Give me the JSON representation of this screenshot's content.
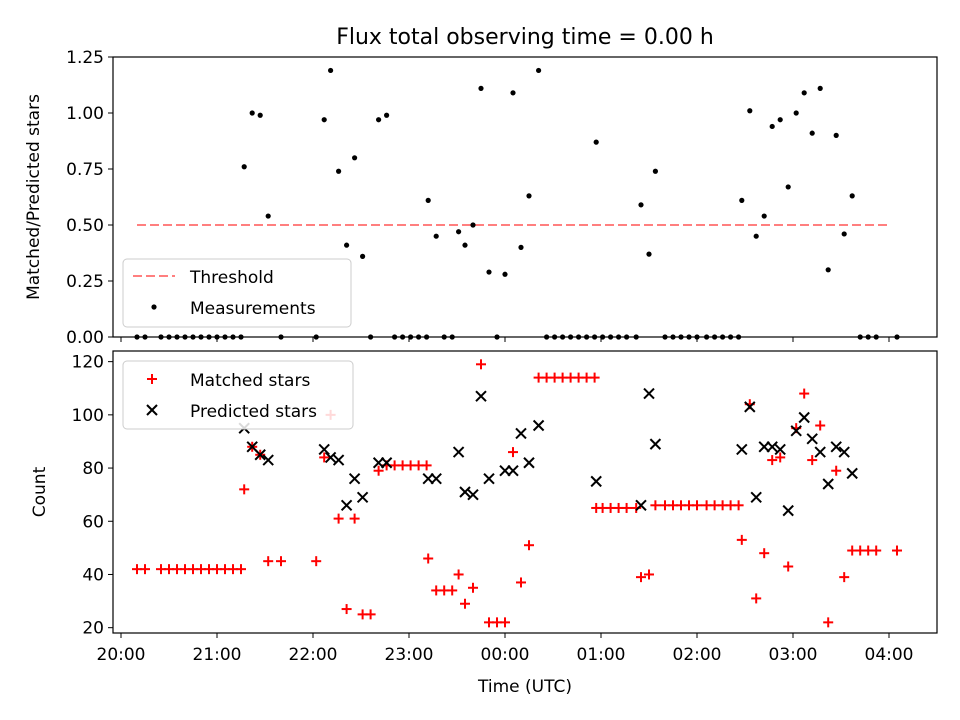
{
  "chart_data": [
    {
      "type": "scatter",
      "title": "Flux total observing time = 0.00 h",
      "ylabel": "Matched/Predicted stars",
      "xlabel": "",
      "ylim": [
        0,
        1.25
      ],
      "yticks": [
        "0.00",
        "0.25",
        "0.50",
        "0.75",
        "1.00",
        "1.25"
      ],
      "threshold": {
        "name": "Threshold",
        "value": 0.5,
        "color": "#ff7f7f",
        "x_range": [
          "20:10",
          "04:00"
        ]
      },
      "series": [
        {
          "name": "Measurements",
          "color": "#000000",
          "points": [
            [
              "20:10",
              0
            ],
            [
              "20:15",
              0
            ],
            [
              "20:25",
              0
            ],
            [
              "20:30",
              0
            ],
            [
              "20:35",
              0
            ],
            [
              "20:40",
              0
            ],
            [
              "20:45",
              0
            ],
            [
              "20:50",
              0
            ],
            [
              "20:55",
              0
            ],
            [
              "21:00",
              0
            ],
            [
              "21:05",
              0
            ],
            [
              "21:10",
              0
            ],
            [
              "21:15",
              0
            ],
            [
              "21:17",
              0.76
            ],
            [
              "21:22",
              1.0
            ],
            [
              "21:27",
              0.99
            ],
            [
              "21:32",
              0.54
            ],
            [
              "21:40",
              0
            ],
            [
              "22:02",
              0
            ],
            [
              "22:07",
              0.97
            ],
            [
              "22:11",
              1.19
            ],
            [
              "22:16",
              0.74
            ],
            [
              "22:21",
              0.41
            ],
            [
              "22:26",
              0.8
            ],
            [
              "22:31",
              0.36
            ],
            [
              "22:36",
              0
            ],
            [
              "22:41",
              0.97
            ],
            [
              "22:46",
              0.99
            ],
            [
              "22:51",
              0
            ],
            [
              "22:56",
              0
            ],
            [
              "23:01",
              0
            ],
            [
              "23:06",
              0
            ],
            [
              "23:11",
              0
            ],
            [
              "23:12",
              0.61
            ],
            [
              "23:17",
              0.45
            ],
            [
              "23:22",
              0
            ],
            [
              "23:27",
              0
            ],
            [
              "23:31",
              0.47
            ],
            [
              "23:35",
              0.41
            ],
            [
              "23:40",
              0.5
            ],
            [
              "23:45",
              1.11
            ],
            [
              "23:50",
              0.29
            ],
            [
              "23:55",
              0
            ],
            [
              "24:00",
              0.28
            ],
            [
              "24:05",
              1.09
            ],
            [
              "24:10",
              0.4
            ],
            [
              "24:15",
              0.63
            ],
            [
              "24:21",
              1.19
            ],
            [
              "24:26",
              0
            ],
            [
              "24:31",
              0
            ],
            [
              "24:36",
              0
            ],
            [
              "24:41",
              0
            ],
            [
              "24:46",
              0
            ],
            [
              "24:51",
              0
            ],
            [
              "24:56",
              0
            ],
            [
              "25:01",
              0
            ],
            [
              "24:57",
              0.87
            ],
            [
              "25:06",
              0
            ],
            [
              "25:11",
              0
            ],
            [
              "25:16",
              0
            ],
            [
              "25:22",
              0
            ],
            [
              "25:25",
              0.59
            ],
            [
              "25:30",
              0.37
            ],
            [
              "25:34",
              0.74
            ],
            [
              "25:40",
              0
            ],
            [
              "25:45",
              0
            ],
            [
              "25:50",
              0
            ],
            [
              "25:55",
              0
            ],
            [
              "26:00",
              0
            ],
            [
              "26:06",
              0
            ],
            [
              "26:11",
              0
            ],
            [
              "26:16",
              0
            ],
            [
              "26:21",
              0
            ],
            [
              "26:26",
              0
            ],
            [
              "26:28",
              0.61
            ],
            [
              "26:33",
              1.01
            ],
            [
              "26:37",
              0.45
            ],
            [
              "26:42",
              0.54
            ],
            [
              "26:47",
              0.94
            ],
            [
              "26:52",
              0.97
            ],
            [
              "26:57",
              0.67
            ],
            [
              "27:02",
              1.0
            ],
            [
              "27:07",
              1.09
            ],
            [
              "27:12",
              0.91
            ],
            [
              "27:17",
              1.11
            ],
            [
              "27:22",
              0.3
            ],
            [
              "27:27",
              0.9
            ],
            [
              "27:32",
              0.46
            ],
            [
              "27:37",
              0.63
            ],
            [
              "27:42",
              0
            ],
            [
              "27:47",
              0
            ],
            [
              "27:52",
              0
            ],
            [
              "28:05",
              0
            ]
          ]
        }
      ],
      "legend": "lower-left"
    },
    {
      "type": "scatter",
      "title": "",
      "ylabel": "Count",
      "xlabel": "Time (UTC)",
      "ylim": [
        18,
        124
      ],
      "yticks": [
        "20",
        "40",
        "60",
        "80",
        "100",
        "120"
      ],
      "xticks": [
        "20:00",
        "21:00",
        "22:00",
        "23:00",
        "00:00",
        "01:00",
        "02:00",
        "03:00",
        "04:00"
      ],
      "xlim": [
        "19:55",
        "04:30"
      ],
      "series": [
        {
          "name": "Matched stars",
          "color": "#ff0000",
          "marker": "plus",
          "points": [
            [
              "20:10",
              42
            ],
            [
              "20:15",
              42
            ],
            [
              "20:25",
              42
            ],
            [
              "20:30",
              42
            ],
            [
              "20:35",
              42
            ],
            [
              "20:40",
              42
            ],
            [
              "20:45",
              42
            ],
            [
              "20:50",
              42
            ],
            [
              "20:55",
              42
            ],
            [
              "21:00",
              42
            ],
            [
              "21:05",
              42
            ],
            [
              "21:10",
              42
            ],
            [
              "21:15",
              42
            ],
            [
              "21:17",
              72
            ],
            [
              "21:22",
              88
            ],
            [
              "21:27",
              85
            ],
            [
              "21:32",
              45
            ],
            [
              "21:40",
              45
            ],
            [
              "22:02",
              45
            ],
            [
              "22:07",
              84
            ],
            [
              "22:11",
              100
            ],
            [
              "22:16",
              61
            ],
            [
              "22:21",
              27
            ],
            [
              "22:26",
              61
            ],
            [
              "22:31",
              25
            ],
            [
              "22:36",
              25
            ],
            [
              "22:41",
              79
            ],
            [
              "22:46",
              81
            ],
            [
              "22:51",
              81
            ],
            [
              "22:56",
              81
            ],
            [
              "23:01",
              81
            ],
            [
              "23:06",
              81
            ],
            [
              "23:11",
              81
            ],
            [
              "23:12",
              46
            ],
            [
              "23:17",
              34
            ],
            [
              "23:22",
              34
            ],
            [
              "23:27",
              34
            ],
            [
              "23:31",
              40
            ],
            [
              "23:35",
              29
            ],
            [
              "23:40",
              35
            ],
            [
              "23:45",
              119
            ],
            [
              "23:50",
              22
            ],
            [
              "23:55",
              22
            ],
            [
              "24:00",
              22
            ],
            [
              "24:05",
              86
            ],
            [
              "24:10",
              37
            ],
            [
              "24:15",
              51
            ],
            [
              "24:21",
              114
            ],
            [
              "24:26",
              114
            ],
            [
              "24:31",
              114
            ],
            [
              "24:36",
              114
            ],
            [
              "24:41",
              114
            ],
            [
              "24:46",
              114
            ],
            [
              "24:51",
              114
            ],
            [
              "24:56",
              114
            ],
            [
              "24:57",
              65
            ],
            [
              "25:01",
              65
            ],
            [
              "25:06",
              65
            ],
            [
              "25:11",
              65
            ],
            [
              "25:16",
              65
            ],
            [
              "25:22",
              65
            ],
            [
              "25:25",
              39
            ],
            [
              "25:30",
              40
            ],
            [
              "25:34",
              66
            ],
            [
              "25:40",
              66
            ],
            [
              "25:45",
              66
            ],
            [
              "25:50",
              66
            ],
            [
              "25:55",
              66
            ],
            [
              "26:00",
              66
            ],
            [
              "26:06",
              66
            ],
            [
              "26:11",
              66
            ],
            [
              "26:16",
              66
            ],
            [
              "26:21",
              66
            ],
            [
              "26:26",
              66
            ],
            [
              "26:28",
              53
            ],
            [
              "26:33",
              104
            ],
            [
              "26:37",
              31
            ],
            [
              "26:42",
              48
            ],
            [
              "26:47",
              83
            ],
            [
              "26:52",
              84
            ],
            [
              "26:57",
              43
            ],
            [
              "27:02",
              95
            ],
            [
              "27:07",
              108
            ],
            [
              "27:12",
              83
            ],
            [
              "27:17",
              96
            ],
            [
              "27:22",
              22
            ],
            [
              "27:27",
              79
            ],
            [
              "27:32",
              39
            ],
            [
              "27:37",
              49
            ],
            [
              "27:42",
              49
            ],
            [
              "27:47",
              49
            ],
            [
              "27:52",
              49
            ],
            [
              "28:05",
              49
            ]
          ]
        },
        {
          "name": "Predicted stars",
          "color": "#000000",
          "marker": "x",
          "points": [
            [
              "21:17",
              95
            ],
            [
              "21:22",
              88
            ],
            [
              "21:27",
              85
            ],
            [
              "21:32",
              83
            ],
            [
              "22:07",
              87
            ],
            [
              "22:11",
              84
            ],
            [
              "22:16",
              83
            ],
            [
              "22:21",
              66
            ],
            [
              "22:26",
              76
            ],
            [
              "22:31",
              69
            ],
            [
              "22:41",
              82
            ],
            [
              "22:46",
              82
            ],
            [
              "23:12",
              76
            ],
            [
              "23:17",
              76
            ],
            [
              "23:31",
              86
            ],
            [
              "23:35",
              71
            ],
            [
              "23:40",
              70
            ],
            [
              "23:45",
              107
            ],
            [
              "23:50",
              76
            ],
            [
              "24:00",
              79
            ],
            [
              "24:05",
              79
            ],
            [
              "24:10",
              93
            ],
            [
              "24:15",
              82
            ],
            [
              "24:21",
              96
            ],
            [
              "24:57",
              75
            ],
            [
              "25:25",
              66
            ],
            [
              "25:30",
              108
            ],
            [
              "25:34",
              89
            ],
            [
              "26:28",
              87
            ],
            [
              "26:33",
              103
            ],
            [
              "26:37",
              69
            ],
            [
              "26:42",
              88
            ],
            [
              "26:47",
              88
            ],
            [
              "26:52",
              87
            ],
            [
              "26:57",
              64
            ],
            [
              "27:02",
              94
            ],
            [
              "27:07",
              99
            ],
            [
              "27:12",
              91
            ],
            [
              "27:17",
              86
            ],
            [
              "27:22",
              74
            ],
            [
              "27:27",
              88
            ],
            [
              "27:32",
              86
            ],
            [
              "27:37",
              78
            ]
          ]
        }
      ],
      "legend": "upper-left"
    }
  ]
}
